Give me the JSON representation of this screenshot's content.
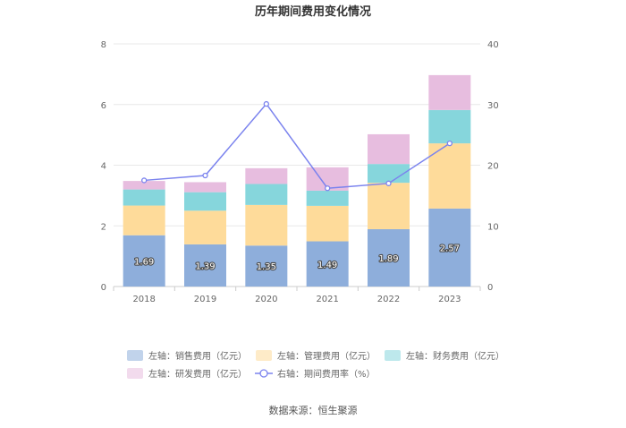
{
  "chart_data": {
    "type": "bar",
    "title": "历年期间费用变化情况",
    "categories": [
      "2018",
      "2019",
      "2020",
      "2021",
      "2022",
      "2023"
    ],
    "stacked": true,
    "left_axis": {
      "min": 0,
      "max": 8,
      "ticks": [
        0,
        2,
        4,
        6,
        8
      ]
    },
    "right_axis": {
      "min": 0,
      "max": 40,
      "ticks": [
        0,
        10,
        20,
        30,
        40
      ]
    },
    "series": [
      {
        "name": "左轴：销售费用（亿元）",
        "axis": "left",
        "kind": "bar",
        "color": "#8eaedb",
        "values": [
          1.69,
          1.39,
          1.35,
          1.49,
          1.89,
          2.57
        ],
        "show_labels": true
      },
      {
        "name": "左轴：管理费用（亿元）",
        "axis": "left",
        "kind": "bar",
        "color": "#fedb9a",
        "values": [
          0.98,
          1.11,
          1.34,
          1.17,
          1.53,
          2.15
        ],
        "show_labels": false
      },
      {
        "name": "左轴：财务费用（亿元）",
        "axis": "left",
        "kind": "bar",
        "color": "#86d6dc",
        "values": [
          0.53,
          0.61,
          0.69,
          0.5,
          0.62,
          1.1
        ],
        "show_labels": false
      },
      {
        "name": "左轴：研发费用（亿元）",
        "axis": "left",
        "kind": "bar",
        "color": "#e7bddf",
        "values": [
          0.28,
          0.33,
          0.52,
          0.77,
          0.98,
          1.15
        ],
        "show_labels": false
      },
      {
        "name": "右轴：期间费用率（%）",
        "axis": "right",
        "kind": "line",
        "color": "#7b83ee",
        "values": [
          17.5,
          18.3,
          30.1,
          16.2,
          17.0,
          23.6
        ],
        "show_labels": false
      }
    ]
  },
  "source": "数据来源：恒生聚源"
}
